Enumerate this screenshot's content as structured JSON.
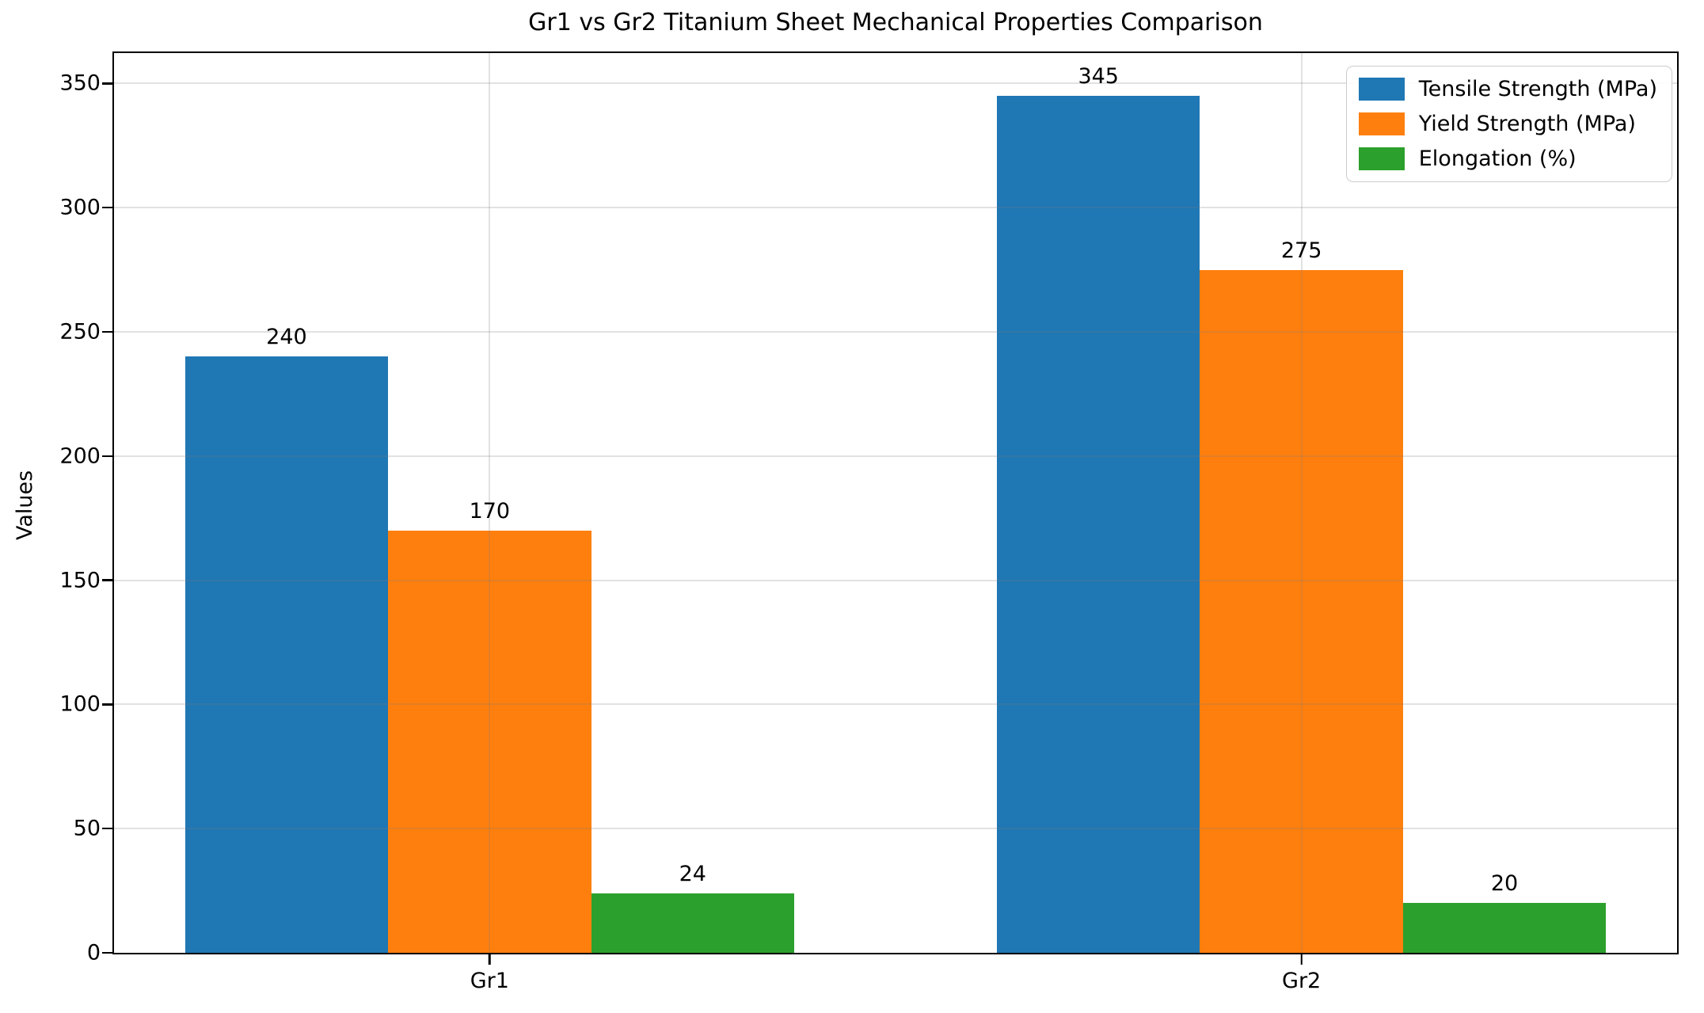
{
  "chart_data": {
    "type": "bar",
    "title": "Gr1 vs Gr2 Titanium Sheet Mechanical Properties Comparison",
    "xlabel": "",
    "ylabel": "Values",
    "categories": [
      "Gr1",
      "Gr2"
    ],
    "series": [
      {
        "name": "Tensile Strength (MPa)",
        "color": "#1f77b4",
        "values": [
          240,
          345
        ]
      },
      {
        "name": "Yield Strength (MPa)",
        "color": "#ff7f0e",
        "values": [
          170,
          275
        ]
      },
      {
        "name": "Elongation (%)",
        "color": "#2ca02c",
        "values": [
          24,
          20
        ]
      }
    ],
    "value_labels": [
      [
        240,
        170,
        24
      ],
      [
        345,
        275,
        20
      ]
    ],
    "yticks": [
      0,
      50,
      100,
      150,
      200,
      250,
      300,
      350
    ],
    "ylim": [
      0,
      362.25
    ],
    "grid": true,
    "grid_axis": "both",
    "legend_position": "upper right",
    "background_color": "#ffffff",
    "text_color": "#000000"
  }
}
